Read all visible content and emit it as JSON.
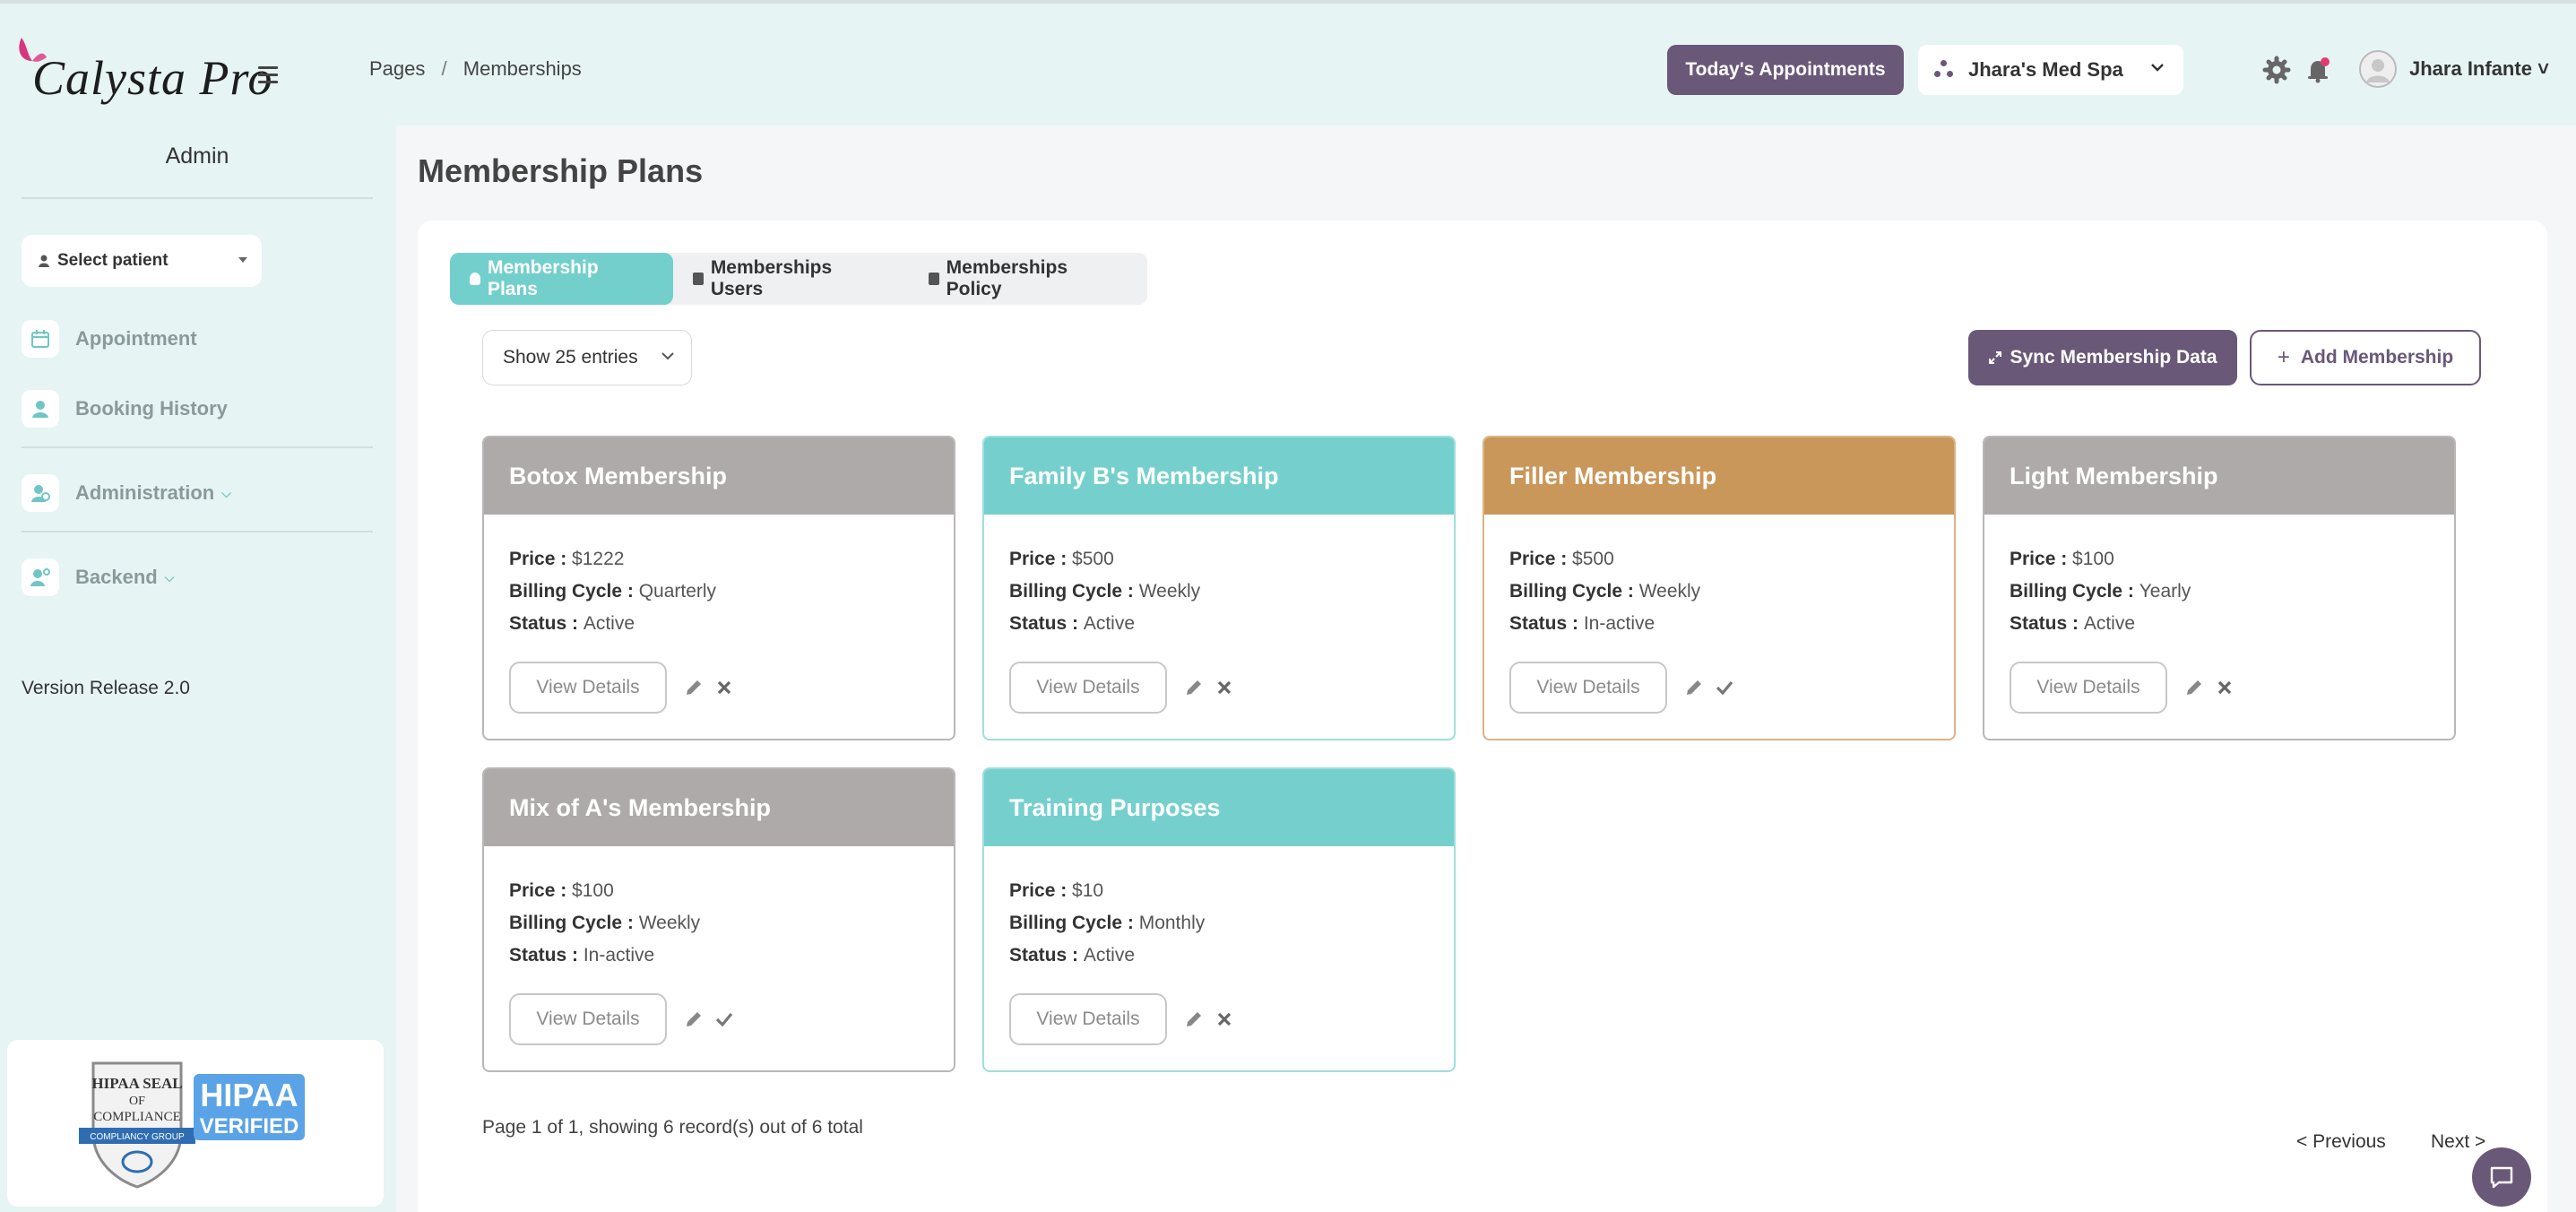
{
  "app": {
    "logo_text": "Calysta Pro"
  },
  "header": {
    "breadcrumb": {
      "parent": "Pages",
      "separator": "/",
      "current": "Memberships"
    },
    "today_button": "Today's Appointments",
    "spa_select": "Jhara's Med Spa",
    "user_name": "Jhara Infante",
    "user_chevron": "˅"
  },
  "sidebar": {
    "title": "Admin",
    "patient_select": "Select patient",
    "items": [
      {
        "label": "Appointment",
        "icon": "calendar-icon"
      },
      {
        "label": "Booking History",
        "icon": "user-icon"
      },
      {
        "label": "Administration",
        "icon": "admin-icon",
        "chevron": "⌵"
      },
      {
        "label": "Backend",
        "icon": "backend-icon",
        "chevron": "⌵"
      }
    ],
    "version": "Version Release 2.0",
    "hipaa": {
      "seal_lines": [
        "HIPAA SEAL",
        "OF",
        "COMPLIANCE"
      ],
      "seal_ribbon": "COMPLIANCY GROUP",
      "badge_top": "HIPAA",
      "badge_bottom": "VERIFIED"
    }
  },
  "main": {
    "title": "Membership Plans",
    "tabs": [
      {
        "label": "Membership Plans",
        "active": true
      },
      {
        "label": "Memberships Users",
        "active": false
      },
      {
        "label": "Memberships Policy",
        "active": false
      }
    ],
    "entries_select": "Show 25 entries",
    "sync_button": "Sync Membership Data",
    "add_button": "Add Membership",
    "labels": {
      "price": "Price : ",
      "billing": "Billing Cycle : ",
      "status": "Status : ",
      "view": "View Details"
    },
    "cards": [
      {
        "title": "Botox Membership",
        "price": "$1222",
        "billing": "Quarterly",
        "status": "Active",
        "theme": "gray"
      },
      {
        "title": "Family B's Membership",
        "price": "$500",
        "billing": "Weekly",
        "status": "Active",
        "theme": "teal"
      },
      {
        "title": "Filler Membership",
        "price": "$500",
        "billing": "Weekly",
        "status": "In-active",
        "theme": "orange"
      },
      {
        "title": "Light Membership",
        "price": "$100",
        "billing": "Yearly",
        "status": "Active",
        "theme": "gray"
      },
      {
        "title": "Mix of A's Membership",
        "price": "$100",
        "billing": "Weekly",
        "status": "In-active",
        "theme": "gray"
      },
      {
        "title": "Training Purposes",
        "price": "$10",
        "billing": "Monthly",
        "status": "Active",
        "theme": "teal"
      }
    ],
    "pagination": {
      "info": "Page 1 of 1, showing 6 record(s) out of 6 total",
      "previous": "< Previous",
      "next": "Next >"
    }
  },
  "colors": {
    "accent_purple": "#6a5878",
    "teal": "#73cfcc",
    "gray_header": "#aeaaaa",
    "orange_header": "#c9975a",
    "background": "#e6f4f4"
  }
}
